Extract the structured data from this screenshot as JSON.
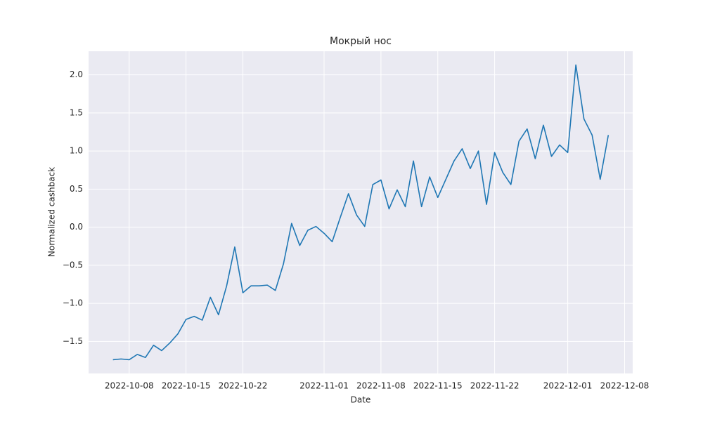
{
  "chart_data": {
    "type": "line",
    "title": "Мокрый нос",
    "xlabel": "Date",
    "ylabel": "Normalized cashback",
    "x": [
      "2022-10-06",
      "2022-10-07",
      "2022-10-08",
      "2022-10-09",
      "2022-10-10",
      "2022-10-11",
      "2022-10-12",
      "2022-10-13",
      "2022-10-14",
      "2022-10-15",
      "2022-10-16",
      "2022-10-17",
      "2022-10-18",
      "2022-10-19",
      "2022-10-20",
      "2022-10-21",
      "2022-10-22",
      "2022-10-23",
      "2022-10-24",
      "2022-10-25",
      "2022-10-26",
      "2022-10-27",
      "2022-10-28",
      "2022-10-29",
      "2022-10-30",
      "2022-10-31",
      "2022-11-01",
      "2022-11-02",
      "2022-11-03",
      "2022-11-04",
      "2022-11-05",
      "2022-11-06",
      "2022-11-07",
      "2022-11-08",
      "2022-11-09",
      "2022-11-10",
      "2022-11-11",
      "2022-11-12",
      "2022-11-13",
      "2022-11-14",
      "2022-11-15",
      "2022-11-16",
      "2022-11-17",
      "2022-11-18",
      "2022-11-19",
      "2022-11-20",
      "2022-11-21",
      "2022-11-22",
      "2022-11-23",
      "2022-11-24",
      "2022-11-25",
      "2022-11-26",
      "2022-11-27",
      "2022-11-28",
      "2022-11-29",
      "2022-11-30",
      "2022-12-01",
      "2022-12-02",
      "2022-12-03",
      "2022-12-04",
      "2022-12-05",
      "2022-12-06"
    ],
    "values": [
      -1.74,
      -1.73,
      -1.74,
      -1.67,
      -1.71,
      -1.55,
      -1.62,
      -1.52,
      -1.4,
      -1.21,
      -1.17,
      -1.22,
      -0.92,
      -1.15,
      -0.77,
      -0.26,
      -0.86,
      -0.77,
      -0.77,
      -0.76,
      -0.83,
      -0.48,
      0.05,
      -0.24,
      -0.04,
      0.01,
      -0.08,
      -0.19,
      0.13,
      0.44,
      0.16,
      0.01,
      0.56,
      0.62,
      0.24,
      0.49,
      0.27,
      0.87,
      0.27,
      0.66,
      0.39,
      0.63,
      0.87,
      1.03,
      0.77,
      1.0,
      0.3,
      0.98,
      0.72,
      0.56,
      1.13,
      1.29,
      0.9,
      1.34,
      0.93,
      1.08,
      0.98,
      2.13,
      1.42,
      1.21,
      0.63,
      1.21
    ],
    "color": "#1f77b4",
    "xlim": [
      "2022-10-03",
      "2022-12-09"
    ],
    "xticks": [
      "2022-10-08",
      "2022-10-15",
      "2022-10-22",
      "2022-11-01",
      "2022-11-08",
      "2022-11-15",
      "2022-11-22",
      "2022-12-01",
      "2022-12-08"
    ],
    "ylim": [
      -1.92,
      2.31
    ],
    "yticks": [
      {
        "value": -1.5,
        "label": "−1.5"
      },
      {
        "value": -1.0,
        "label": "−1.0"
      },
      {
        "value": -0.5,
        "label": "−0.5"
      },
      {
        "value": 0,
        "label": "0.0"
      },
      0.5,
      {
        "value": 1,
        "label": "1.0"
      },
      1.5,
      {
        "value": 2,
        "label": "2.0"
      }
    ],
    "grid": true
  }
}
